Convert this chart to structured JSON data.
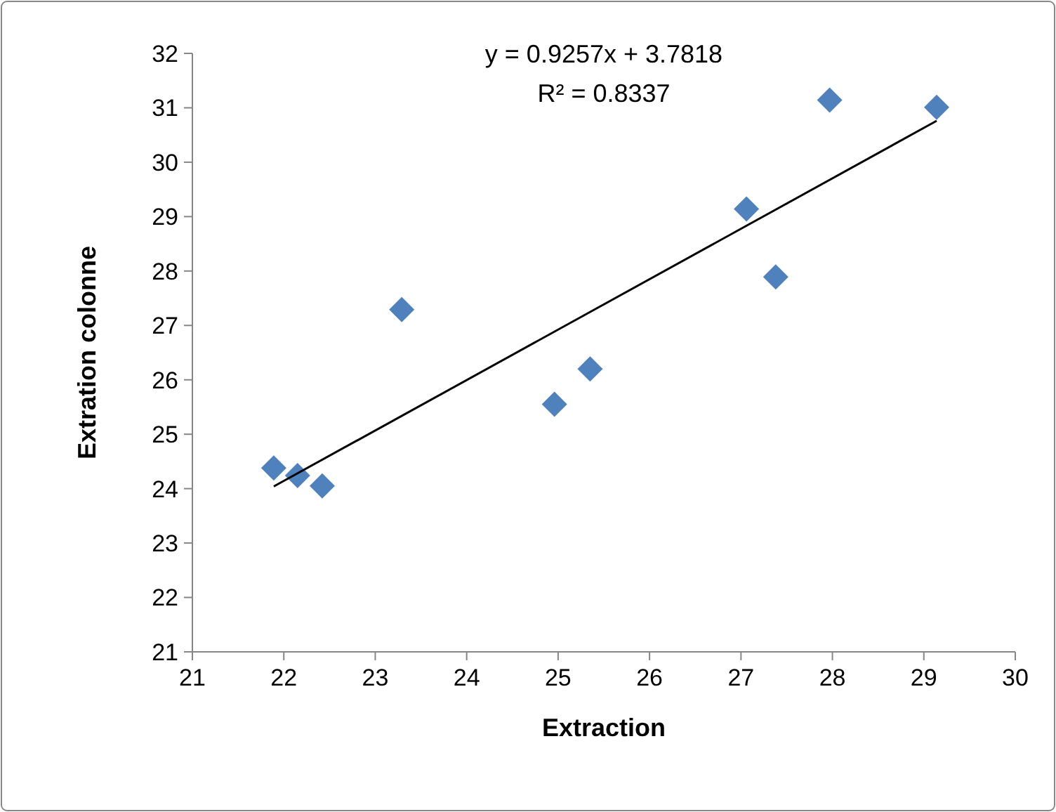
{
  "chart_data": {
    "type": "scatter",
    "xlabel": "Extraction",
    "ylabel": "Extration colonne",
    "annotations": [
      "y = 0.9257x + 3.7818",
      "R² = 0.8337"
    ],
    "xlim": [
      21,
      30
    ],
    "xticks": [
      21,
      22,
      23,
      24,
      25,
      26,
      27,
      28,
      29,
      30
    ],
    "ylim": [
      21,
      32
    ],
    "yticks": [
      21,
      22,
      23,
      24,
      25,
      26,
      27,
      28,
      29,
      30,
      31,
      32
    ],
    "grid": false,
    "marker": "diamond",
    "series": [
      {
        "color": "#4f81bd",
        "x": [
          21.89,
          22.15,
          22.42,
          23.29,
          24.96,
          25.35,
          27.06,
          27.38,
          27.97,
          29.14
        ],
        "values": [
          24.38,
          24.24,
          24.05,
          27.29,
          25.55,
          26.2,
          29.14,
          27.89,
          31.14,
          31.01
        ]
      },
      {
        "type": "line",
        "color": "#000000",
        "marker": "none",
        "line_style": "solid",
        "x": [
          21.89,
          29.14
        ],
        "values": [
          24.04,
          30.76
        ]
      }
    ]
  }
}
